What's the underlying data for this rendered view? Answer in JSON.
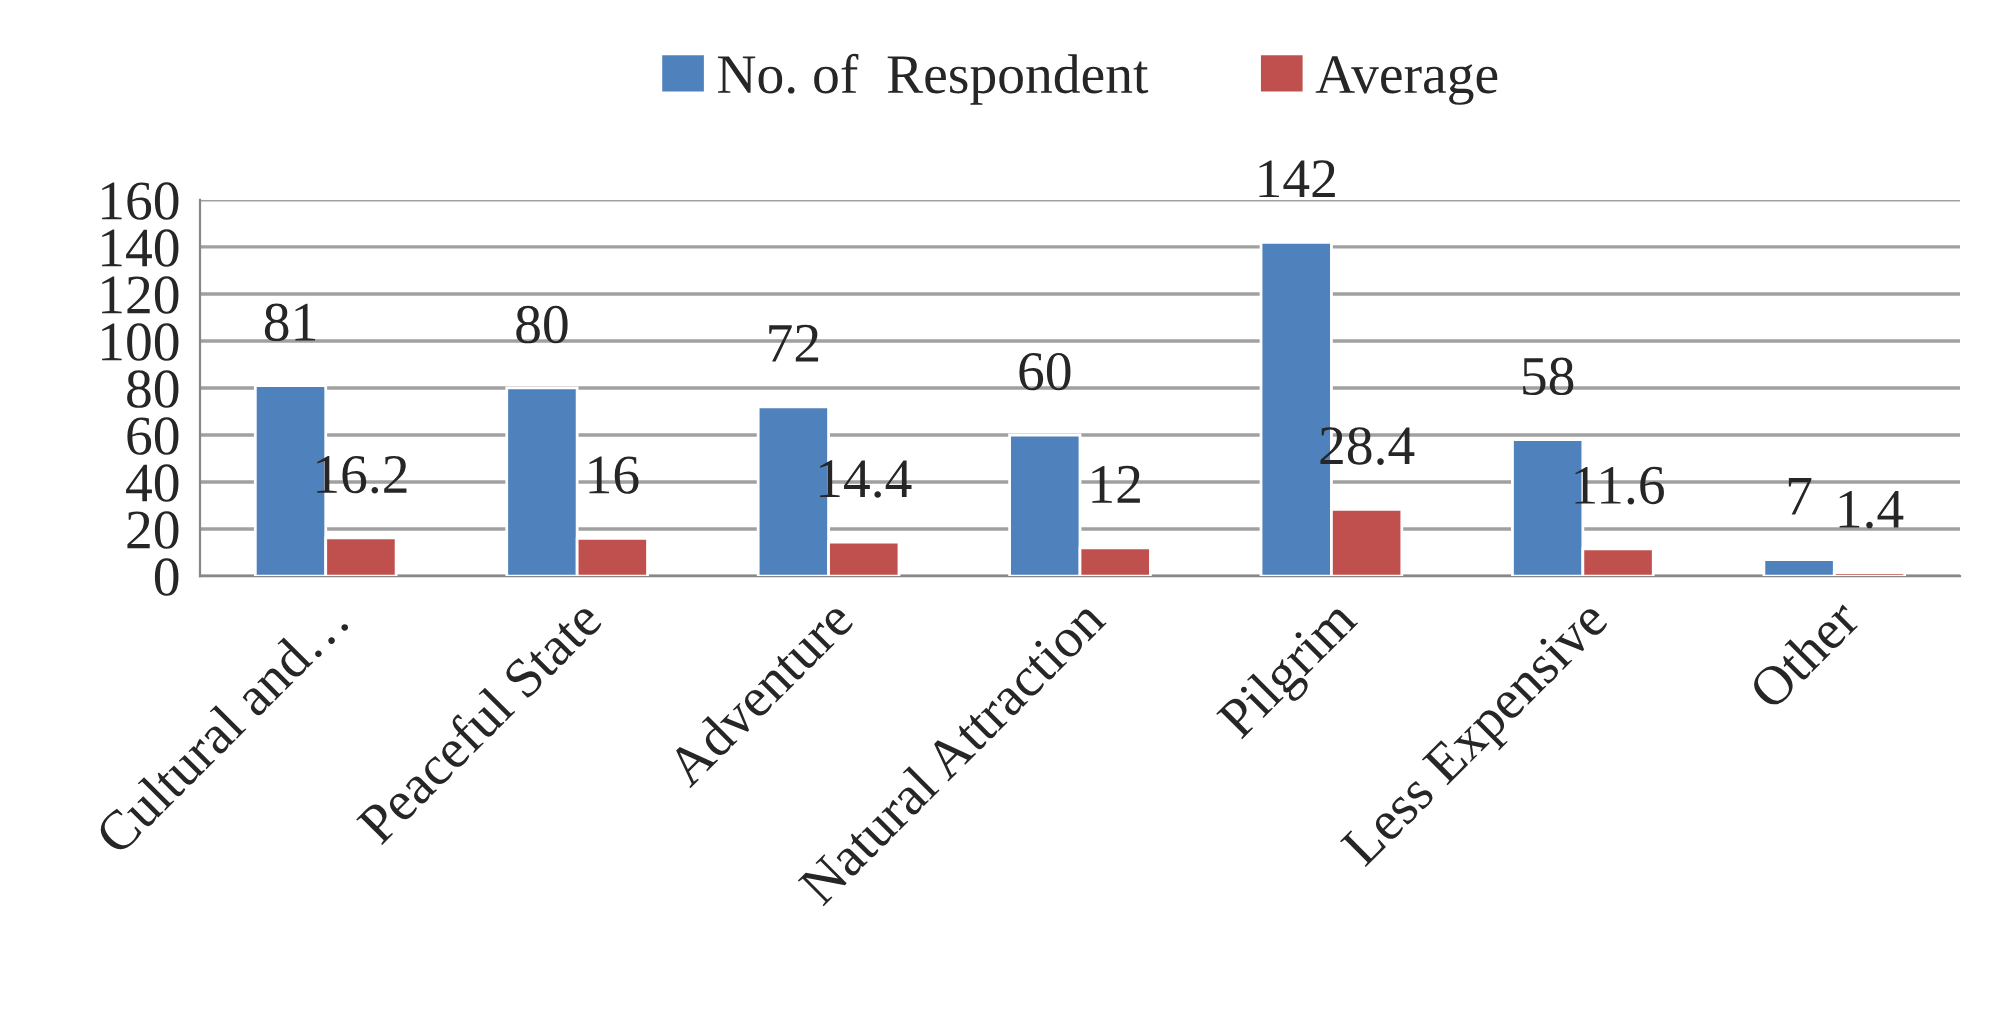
{
  "chart_data": {
    "type": "bar",
    "categories": [
      "Cultural and…",
      "Peaceful State",
      "Adventure",
      "Natural Attraction",
      "Pilgrim",
      "Less Expensive",
      "Other"
    ],
    "series": [
      {
        "name": "No. of  Respondent",
        "color": "#4f81bd",
        "values": [
          81,
          80,
          72,
          60,
          142,
          58,
          7
        ]
      },
      {
        "name": "Average",
        "color": "#c0504d",
        "values": [
          16.2,
          16,
          14.4,
          12,
          28.4,
          11.6,
          1.4
        ]
      }
    ],
    "ylim": [
      0,
      160
    ],
    "yticks": [
      0,
      20,
      40,
      60,
      80,
      100,
      120,
      140,
      160
    ],
    "grid": "y",
    "legend": "top",
    "data_labels": true
  }
}
